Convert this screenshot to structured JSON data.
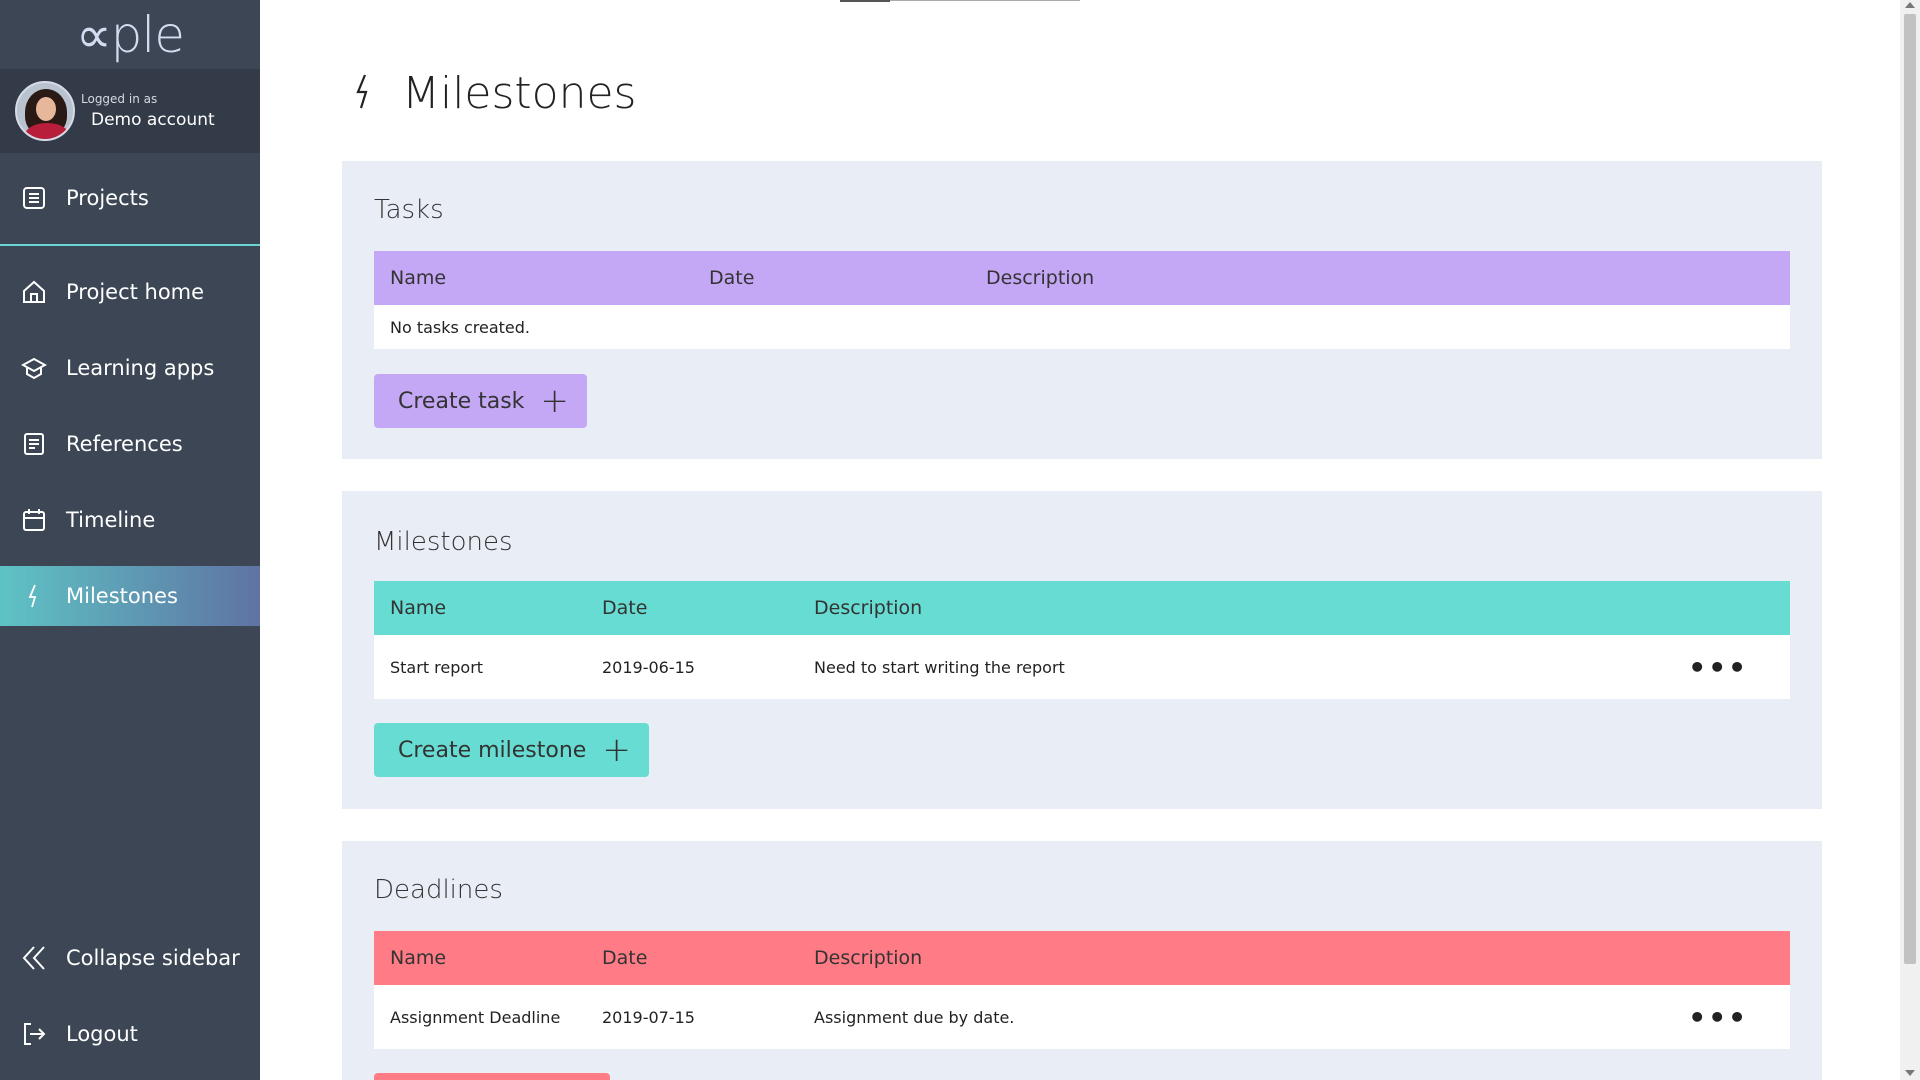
{
  "brand": {
    "logo": "∝ple"
  },
  "user": {
    "logged_in_label": "Logged in as",
    "name": "Demo account"
  },
  "sidebar": {
    "items": [
      {
        "label": "Projects",
        "icon": "projects-icon"
      },
      {
        "label": "Project home",
        "icon": "home-icon"
      },
      {
        "label": "Learning apps",
        "icon": "learning-apps-icon"
      },
      {
        "label": "References",
        "icon": "references-icon"
      },
      {
        "label": "Timeline",
        "icon": "calendar-icon"
      },
      {
        "label": "Milestones",
        "icon": "lightning-icon",
        "active": true
      }
    ],
    "collapse_label": "Collapse sidebar",
    "logout_label": "Logout"
  },
  "page": {
    "title": "Milestones",
    "icon": "lightning-icon"
  },
  "tasks": {
    "heading": "Tasks",
    "columns": [
      "Name",
      "Date",
      "Description"
    ],
    "empty_text": "No tasks created.",
    "button_label": "Create task",
    "accent": "#c4a8f5"
  },
  "milestones": {
    "heading": "Milestones",
    "columns": [
      "Name",
      "Date",
      "Description"
    ],
    "rows": [
      {
        "name": "Start report",
        "date": "2019-06-15",
        "description": "Need to start writing the report"
      }
    ],
    "button_label": "Create milestone",
    "accent": "#67dcd3"
  },
  "deadlines": {
    "heading": "Deadlines",
    "columns": [
      "Name",
      "Date",
      "Description"
    ],
    "rows": [
      {
        "name": "Assignment Deadline",
        "date": "2019-07-15",
        "description": "Assignment due by date."
      }
    ],
    "accent": "#ff7b86"
  },
  "row_menu_glyph": "•••",
  "plus_glyph": "+"
}
